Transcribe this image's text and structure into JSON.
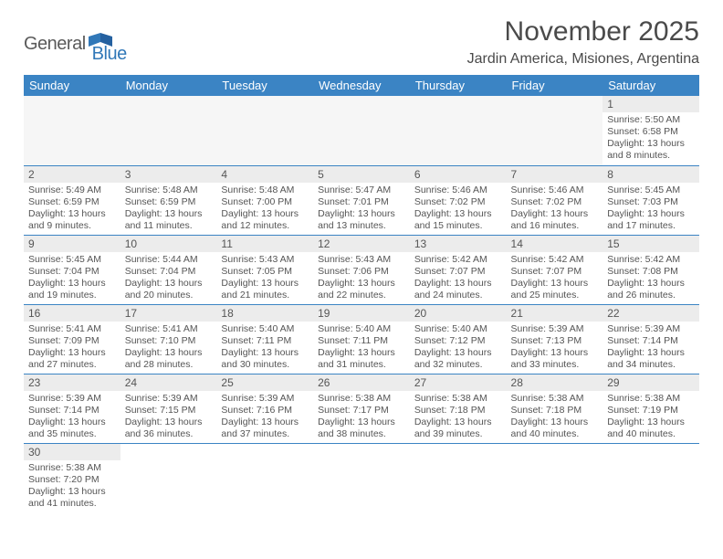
{
  "logo": {
    "textLeft": "General",
    "textRight": "Blue",
    "grey": "#5a5a5a",
    "blue": "#3178b8"
  },
  "title": {
    "month": "November 2025",
    "location": "Jardin America, Misiones, Argentina"
  },
  "colors": {
    "headerBg": "#3b84c4",
    "headerText": "#ffffff",
    "dayNumBg": "#ececec",
    "bodyText": "#555555",
    "rowBorder": "#3b84c4",
    "emptyBg": "#f6f6f6"
  },
  "dayHeaders": [
    "Sunday",
    "Monday",
    "Tuesday",
    "Wednesday",
    "Thursday",
    "Friday",
    "Saturday"
  ],
  "weeks": [
    [
      null,
      null,
      null,
      null,
      null,
      null,
      {
        "n": "1",
        "sr": "Sunrise: 5:50 AM",
        "ss": "Sunset: 6:58 PM",
        "dl1": "Daylight: 13 hours",
        "dl2": "and 8 minutes."
      }
    ],
    [
      {
        "n": "2",
        "sr": "Sunrise: 5:49 AM",
        "ss": "Sunset: 6:59 PM",
        "dl1": "Daylight: 13 hours",
        "dl2": "and 9 minutes."
      },
      {
        "n": "3",
        "sr": "Sunrise: 5:48 AM",
        "ss": "Sunset: 6:59 PM",
        "dl1": "Daylight: 13 hours",
        "dl2": "and 11 minutes."
      },
      {
        "n": "4",
        "sr": "Sunrise: 5:48 AM",
        "ss": "Sunset: 7:00 PM",
        "dl1": "Daylight: 13 hours",
        "dl2": "and 12 minutes."
      },
      {
        "n": "5",
        "sr": "Sunrise: 5:47 AM",
        "ss": "Sunset: 7:01 PM",
        "dl1": "Daylight: 13 hours",
        "dl2": "and 13 minutes."
      },
      {
        "n": "6",
        "sr": "Sunrise: 5:46 AM",
        "ss": "Sunset: 7:02 PM",
        "dl1": "Daylight: 13 hours",
        "dl2": "and 15 minutes."
      },
      {
        "n": "7",
        "sr": "Sunrise: 5:46 AM",
        "ss": "Sunset: 7:02 PM",
        "dl1": "Daylight: 13 hours",
        "dl2": "and 16 minutes."
      },
      {
        "n": "8",
        "sr": "Sunrise: 5:45 AM",
        "ss": "Sunset: 7:03 PM",
        "dl1": "Daylight: 13 hours",
        "dl2": "and 17 minutes."
      }
    ],
    [
      {
        "n": "9",
        "sr": "Sunrise: 5:45 AM",
        "ss": "Sunset: 7:04 PM",
        "dl1": "Daylight: 13 hours",
        "dl2": "and 19 minutes."
      },
      {
        "n": "10",
        "sr": "Sunrise: 5:44 AM",
        "ss": "Sunset: 7:04 PM",
        "dl1": "Daylight: 13 hours",
        "dl2": "and 20 minutes."
      },
      {
        "n": "11",
        "sr": "Sunrise: 5:43 AM",
        "ss": "Sunset: 7:05 PM",
        "dl1": "Daylight: 13 hours",
        "dl2": "and 21 minutes."
      },
      {
        "n": "12",
        "sr": "Sunrise: 5:43 AM",
        "ss": "Sunset: 7:06 PM",
        "dl1": "Daylight: 13 hours",
        "dl2": "and 22 minutes."
      },
      {
        "n": "13",
        "sr": "Sunrise: 5:42 AM",
        "ss": "Sunset: 7:07 PM",
        "dl1": "Daylight: 13 hours",
        "dl2": "and 24 minutes."
      },
      {
        "n": "14",
        "sr": "Sunrise: 5:42 AM",
        "ss": "Sunset: 7:07 PM",
        "dl1": "Daylight: 13 hours",
        "dl2": "and 25 minutes."
      },
      {
        "n": "15",
        "sr": "Sunrise: 5:42 AM",
        "ss": "Sunset: 7:08 PM",
        "dl1": "Daylight: 13 hours",
        "dl2": "and 26 minutes."
      }
    ],
    [
      {
        "n": "16",
        "sr": "Sunrise: 5:41 AM",
        "ss": "Sunset: 7:09 PM",
        "dl1": "Daylight: 13 hours",
        "dl2": "and 27 minutes."
      },
      {
        "n": "17",
        "sr": "Sunrise: 5:41 AM",
        "ss": "Sunset: 7:10 PM",
        "dl1": "Daylight: 13 hours",
        "dl2": "and 28 minutes."
      },
      {
        "n": "18",
        "sr": "Sunrise: 5:40 AM",
        "ss": "Sunset: 7:11 PM",
        "dl1": "Daylight: 13 hours",
        "dl2": "and 30 minutes."
      },
      {
        "n": "19",
        "sr": "Sunrise: 5:40 AM",
        "ss": "Sunset: 7:11 PM",
        "dl1": "Daylight: 13 hours",
        "dl2": "and 31 minutes."
      },
      {
        "n": "20",
        "sr": "Sunrise: 5:40 AM",
        "ss": "Sunset: 7:12 PM",
        "dl1": "Daylight: 13 hours",
        "dl2": "and 32 minutes."
      },
      {
        "n": "21",
        "sr": "Sunrise: 5:39 AM",
        "ss": "Sunset: 7:13 PM",
        "dl1": "Daylight: 13 hours",
        "dl2": "and 33 minutes."
      },
      {
        "n": "22",
        "sr": "Sunrise: 5:39 AM",
        "ss": "Sunset: 7:14 PM",
        "dl1": "Daylight: 13 hours",
        "dl2": "and 34 minutes."
      }
    ],
    [
      {
        "n": "23",
        "sr": "Sunrise: 5:39 AM",
        "ss": "Sunset: 7:14 PM",
        "dl1": "Daylight: 13 hours",
        "dl2": "and 35 minutes."
      },
      {
        "n": "24",
        "sr": "Sunrise: 5:39 AM",
        "ss": "Sunset: 7:15 PM",
        "dl1": "Daylight: 13 hours",
        "dl2": "and 36 minutes."
      },
      {
        "n": "25",
        "sr": "Sunrise: 5:39 AM",
        "ss": "Sunset: 7:16 PM",
        "dl1": "Daylight: 13 hours",
        "dl2": "and 37 minutes."
      },
      {
        "n": "26",
        "sr": "Sunrise: 5:38 AM",
        "ss": "Sunset: 7:17 PM",
        "dl1": "Daylight: 13 hours",
        "dl2": "and 38 minutes."
      },
      {
        "n": "27",
        "sr": "Sunrise: 5:38 AM",
        "ss": "Sunset: 7:18 PM",
        "dl1": "Daylight: 13 hours",
        "dl2": "and 39 minutes."
      },
      {
        "n": "28",
        "sr": "Sunrise: 5:38 AM",
        "ss": "Sunset: 7:18 PM",
        "dl1": "Daylight: 13 hours",
        "dl2": "and 40 minutes."
      },
      {
        "n": "29",
        "sr": "Sunrise: 5:38 AM",
        "ss": "Sunset: 7:19 PM",
        "dl1": "Daylight: 13 hours",
        "dl2": "and 40 minutes."
      }
    ],
    [
      {
        "n": "30",
        "sr": "Sunrise: 5:38 AM",
        "ss": "Sunset: 7:20 PM",
        "dl1": "Daylight: 13 hours",
        "dl2": "and 41 minutes."
      },
      null,
      null,
      null,
      null,
      null,
      null
    ]
  ]
}
